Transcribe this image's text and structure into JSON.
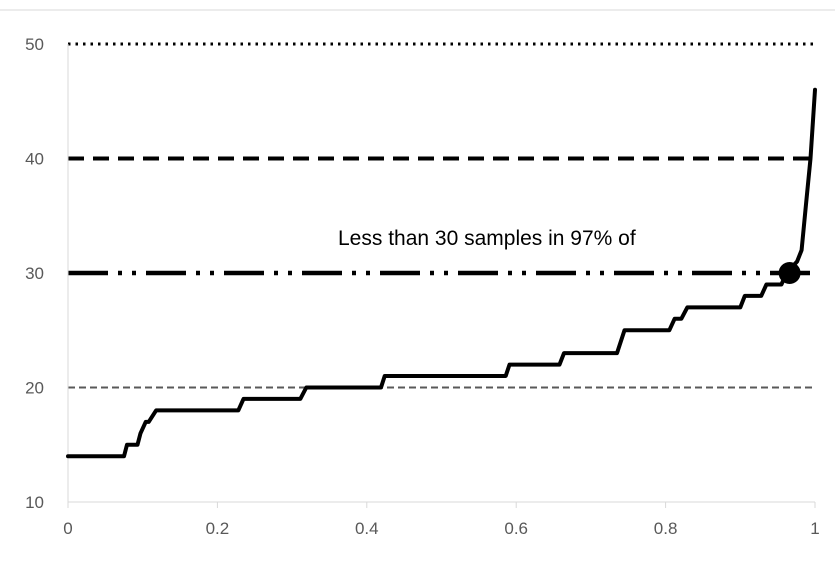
{
  "chart_data": {
    "type": "line",
    "title": "",
    "xlabel": "",
    "ylabel": "",
    "xlim": [
      0,
      1
    ],
    "ylim": [
      10,
      50
    ],
    "x_ticks": [
      0,
      0.2,
      0.4,
      0.6,
      0.8,
      1
    ],
    "x_tick_labels": [
      "0",
      "0.2",
      "0.4",
      "0.6",
      "0.8",
      "1"
    ],
    "y_ticks": [
      10,
      20,
      30,
      40,
      50
    ],
    "y_tick_labels": [
      "10",
      "20",
      "30",
      "40",
      "50"
    ],
    "grid": false,
    "legend": "none",
    "reference_lines": [
      {
        "y": 50,
        "style": "dotted",
        "color": "#000000"
      },
      {
        "y": 40,
        "style": "dashed",
        "color": "#000000"
      },
      {
        "y": 30,
        "style": "long-dash-dot-dot",
        "color": "#000000"
      },
      {
        "y": 20,
        "style": "dashed-thin",
        "color": "#595959"
      }
    ],
    "series": [
      {
        "color": "#000000",
        "points": [
          [
            0.0,
            14
          ],
          [
            0.075,
            14
          ],
          [
            0.079,
            15
          ],
          [
            0.093,
            15
          ],
          [
            0.097,
            16
          ],
          [
            0.104,
            17
          ],
          [
            0.108,
            17
          ],
          [
            0.118,
            18
          ],
          [
            0.228,
            18
          ],
          [
            0.235,
            19
          ],
          [
            0.311,
            19
          ],
          [
            0.319,
            20
          ],
          [
            0.419,
            20
          ],
          [
            0.424,
            21
          ],
          [
            0.586,
            21
          ],
          [
            0.591,
            22
          ],
          [
            0.658,
            22
          ],
          [
            0.664,
            23
          ],
          [
            0.735,
            23
          ],
          [
            0.745,
            25
          ],
          [
            0.805,
            25
          ],
          [
            0.812,
            26
          ],
          [
            0.821,
            26
          ],
          [
            0.829,
            27
          ],
          [
            0.9,
            27
          ],
          [
            0.906,
            28
          ],
          [
            0.928,
            28
          ],
          [
            0.935,
            29
          ],
          [
            0.955,
            29
          ],
          [
            0.962,
            30
          ],
          [
            0.976,
            31
          ],
          [
            0.982,
            32
          ],
          [
            0.988,
            36
          ],
          [
            0.994,
            40
          ],
          [
            1.0,
            46
          ]
        ]
      }
    ],
    "highlight_point": {
      "x": 0.966,
      "y": 30
    },
    "annotation": "Less than 30 samples in 97% of"
  }
}
